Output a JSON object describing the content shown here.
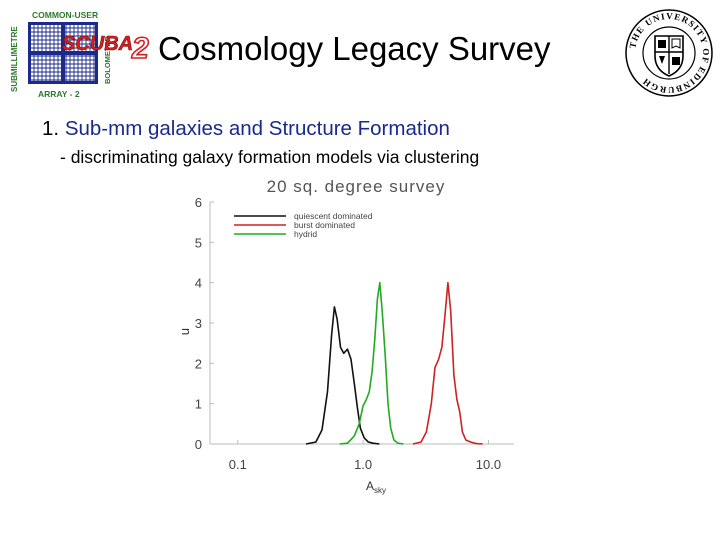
{
  "slide": {
    "title": "Cosmology Legacy Survey",
    "point_number": "1.",
    "point_text": "Sub-mm galaxies and Structure Formation",
    "subpoint": "- discriminating galaxy formation models via clustering"
  },
  "logos": {
    "scuba": {
      "top_text": "COMMON-USER",
      "left_text": "SUBMILLIMETRE",
      "right_text": "BOLOMETER",
      "bottom_text": "ARRAY - 2",
      "name_text": "SCUBA",
      "name_digit": "2",
      "accent_color": "#d81e1e",
      "text_color": "#2d7a2d",
      "grid_color": "#1c2a8c"
    },
    "edinburgh": {
      "ring_text": "THE UNIVERSITY OF EDINBURGH",
      "color": "#000000"
    }
  },
  "chart_data": {
    "type": "line",
    "title": "20 sq. degree survey",
    "xlabel": "A",
    "xlabel_sub": "sky",
    "ylabel": "n",
    "x_scale": "log",
    "xlim": [
      0.06,
      16
    ],
    "ylim": [
      0,
      6
    ],
    "x_ticks": [
      0.1,
      1.0,
      10.0
    ],
    "x_tick_labels": [
      "0.1",
      "1.0",
      "10.0"
    ],
    "y_ticks": [
      0,
      1,
      2,
      3,
      4,
      5,
      6
    ],
    "y_tick_labels": [
      "0",
      "1",
      "2",
      "3",
      "4",
      "5",
      "6"
    ],
    "grid": false,
    "legend_position": "top-left",
    "series": [
      {
        "name": "quiescent dominated",
        "color": "#111111",
        "x": [
          0.35,
          0.42,
          0.47,
          0.52,
          0.56,
          0.59,
          0.62,
          0.66,
          0.7,
          0.75,
          0.8,
          0.85,
          0.9,
          0.95,
          1.02,
          1.1,
          1.2,
          1.35
        ],
        "y": [
          0.0,
          0.05,
          0.35,
          1.3,
          2.7,
          3.4,
          3.1,
          2.4,
          2.25,
          2.35,
          2.1,
          1.5,
          0.9,
          0.4,
          0.15,
          0.05,
          0.02,
          0.0
        ]
      },
      {
        "name": "burst dominated",
        "color": "#cc2222",
        "x": [
          2.5,
          2.9,
          3.2,
          3.5,
          3.75,
          4.0,
          4.25,
          4.5,
          4.75,
          5.0,
          5.3,
          5.6,
          5.9,
          6.2,
          6.6,
          7.2,
          8.0,
          9.0
        ],
        "y": [
          0.0,
          0.05,
          0.3,
          1.0,
          1.9,
          2.1,
          2.4,
          3.2,
          4.0,
          3.3,
          1.7,
          1.1,
          0.8,
          0.3,
          0.1,
          0.05,
          0.01,
          0.0
        ]
      },
      {
        "name": "hydrid",
        "color": "#22aa22",
        "x": [
          0.65,
          0.75,
          0.85,
          0.93,
          1.0,
          1.06,
          1.12,
          1.18,
          1.24,
          1.3,
          1.36,
          1.42,
          1.5,
          1.58,
          1.66,
          1.76,
          1.9,
          2.1
        ],
        "y": [
          0.0,
          0.02,
          0.2,
          0.5,
          0.95,
          1.1,
          1.3,
          1.8,
          2.6,
          3.6,
          4.0,
          3.3,
          2.2,
          1.0,
          0.4,
          0.1,
          0.02,
          0.0
        ]
      }
    ]
  }
}
